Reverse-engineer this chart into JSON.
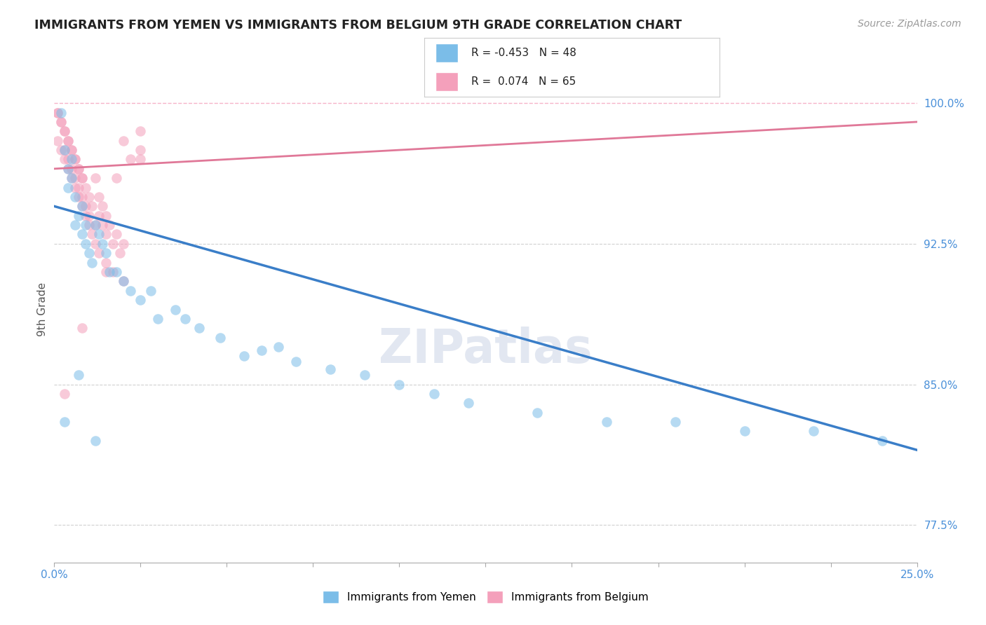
{
  "title": "IMMIGRANTS FROM YEMEN VS IMMIGRANTS FROM BELGIUM 9TH GRADE CORRELATION CHART",
  "source": "Source: ZipAtlas.com",
  "xlabel_label": "Immigrants from Yemen",
  "ylabel_label": "9th Grade",
  "xlabel2_label": "Immigrants from Belgium",
  "xlim": [
    0.0,
    0.25
  ],
  "ylim": [
    0.755,
    1.025
  ],
  "yticks": [
    0.775,
    0.85,
    0.925,
    1.0
  ],
  "yticklabels": [
    "77.5%",
    "85.0%",
    "92.5%",
    "100.0%"
  ],
  "R_yemen": -0.453,
  "N_yemen": 48,
  "R_belgium": 0.074,
  "N_belgium": 65,
  "color_yemen": "#7bbde8",
  "color_belgium": "#f4a0bb",
  "trendline_color_yemen": "#3a7ec8",
  "trendline_color_belgium": "#e07898",
  "watermark": "ZIPatlas",
  "yemen_trend_x": [
    0.0,
    0.25
  ],
  "yemen_trend_y": [
    0.945,
    0.815
  ],
  "belgium_trend_x": [
    0.0,
    0.25
  ],
  "belgium_trend_y": [
    0.965,
    0.99
  ],
  "yemen_x": [
    0.002,
    0.003,
    0.004,
    0.004,
    0.005,
    0.005,
    0.006,
    0.006,
    0.007,
    0.008,
    0.008,
    0.009,
    0.009,
    0.01,
    0.011,
    0.012,
    0.013,
    0.014,
    0.015,
    0.016,
    0.018,
    0.02,
    0.022,
    0.025,
    0.028,
    0.03,
    0.035,
    0.038,
    0.042,
    0.048,
    0.055,
    0.06,
    0.065,
    0.07,
    0.08,
    0.09,
    0.1,
    0.11,
    0.12,
    0.14,
    0.16,
    0.18,
    0.2,
    0.22,
    0.24,
    0.003,
    0.007,
    0.012
  ],
  "yemen_y": [
    0.995,
    0.975,
    0.965,
    0.955,
    0.96,
    0.97,
    0.95,
    0.935,
    0.94,
    0.945,
    0.93,
    0.925,
    0.935,
    0.92,
    0.915,
    0.935,
    0.93,
    0.925,
    0.92,
    0.91,
    0.91,
    0.905,
    0.9,
    0.895,
    0.9,
    0.885,
    0.89,
    0.885,
    0.88,
    0.875,
    0.865,
    0.868,
    0.87,
    0.862,
    0.858,
    0.855,
    0.85,
    0.845,
    0.84,
    0.835,
    0.83,
    0.83,
    0.825,
    0.825,
    0.82,
    0.83,
    0.855,
    0.82
  ],
  "belgium_x": [
    0.001,
    0.002,
    0.003,
    0.003,
    0.004,
    0.004,
    0.005,
    0.005,
    0.006,
    0.006,
    0.007,
    0.007,
    0.008,
    0.008,
    0.009,
    0.009,
    0.01,
    0.01,
    0.011,
    0.012,
    0.012,
    0.013,
    0.013,
    0.014,
    0.014,
    0.015,
    0.015,
    0.016,
    0.017,
    0.018,
    0.019,
    0.02,
    0.001,
    0.002,
    0.003,
    0.004,
    0.005,
    0.006,
    0.007,
    0.008,
    0.009,
    0.01,
    0.011,
    0.012,
    0.013,
    0.015,
    0.017,
    0.02,
    0.022,
    0.025,
    0.001,
    0.002,
    0.003,
    0.004,
    0.005,
    0.006,
    0.007,
    0.008,
    0.02,
    0.025,
    0.003,
    0.008,
    0.015,
    0.018,
    0.025
  ],
  "belgium_y": [
    0.995,
    0.99,
    0.985,
    0.975,
    0.98,
    0.97,
    0.975,
    0.965,
    0.97,
    0.96,
    0.965,
    0.955,
    0.96,
    0.95,
    0.955,
    0.945,
    0.95,
    0.94,
    0.945,
    0.96,
    0.935,
    0.94,
    0.95,
    0.935,
    0.945,
    0.94,
    0.93,
    0.935,
    0.925,
    0.93,
    0.92,
    0.925,
    0.98,
    0.975,
    0.97,
    0.965,
    0.96,
    0.955,
    0.95,
    0.945,
    0.94,
    0.935,
    0.93,
    0.925,
    0.92,
    0.915,
    0.91,
    0.905,
    0.97,
    0.975,
    0.995,
    0.99,
    0.985,
    0.98,
    0.975,
    0.97,
    0.965,
    0.96,
    0.98,
    0.985,
    0.845,
    0.88,
    0.91,
    0.96,
    0.97
  ]
}
